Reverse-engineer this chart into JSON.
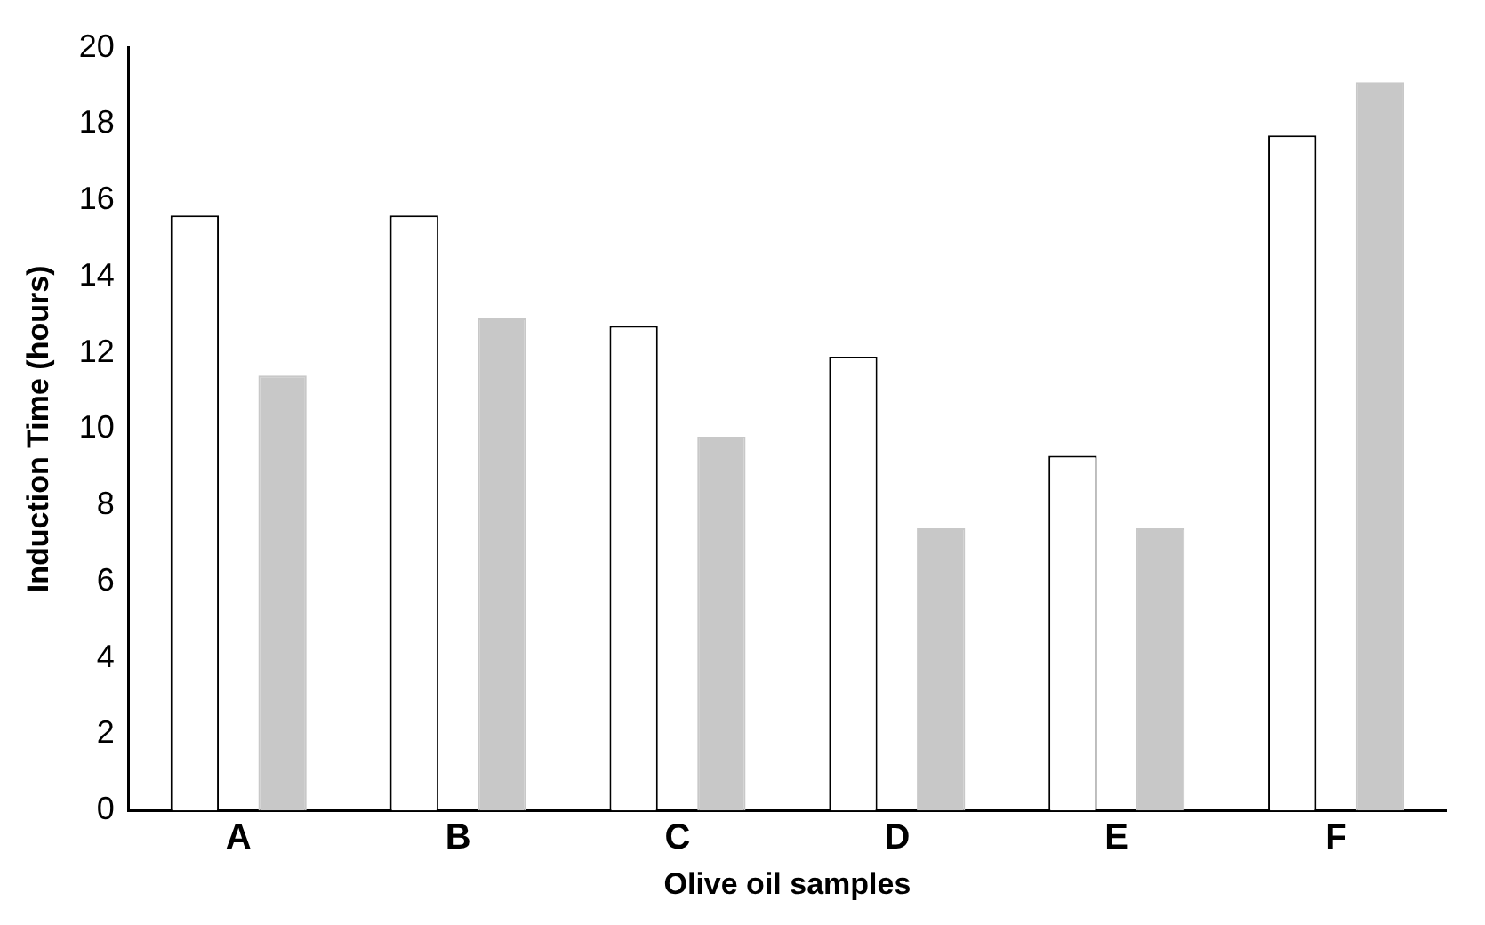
{
  "chart_data": {
    "type": "bar",
    "xlabel": "Olive oil samples",
    "ylabel": "Induction Time (hours)",
    "categories": [
      "A",
      "B",
      "C",
      "D",
      "E",
      "F"
    ],
    "series": [
      {
        "color": "#ffffff",
        "values": [
          15.6,
          15.6,
          12.7,
          11.9,
          9.3,
          17.7
        ]
      },
      {
        "color": "#c8c8c8",
        "values": [
          11.4,
          12.9,
          9.8,
          7.4,
          7.4,
          19.1
        ]
      }
    ],
    "ylim": [
      0,
      20
    ],
    "yticks": [
      0,
      2,
      4,
      6,
      8,
      10,
      12,
      14,
      16,
      18,
      20
    ],
    "grid": false,
    "legend": false
  }
}
